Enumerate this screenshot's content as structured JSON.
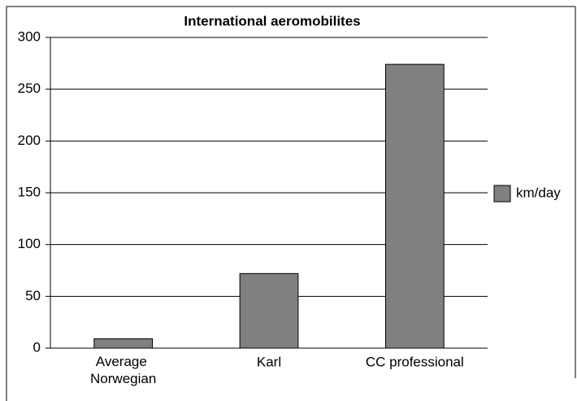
{
  "chart_data": {
    "type": "bar",
    "title": "International aeromobilites",
    "categories": [
      "Average Norwegian",
      "Karl",
      "CC professional"
    ],
    "series": [
      {
        "name": "km/day",
        "color": "#808080",
        "values": [
          9,
          72,
          274
        ]
      }
    ],
    "ylim": [
      0,
      300
    ],
    "yticks": [
      0,
      50,
      100,
      150,
      200,
      250,
      300
    ],
    "grid": true,
    "legend": "right"
  }
}
